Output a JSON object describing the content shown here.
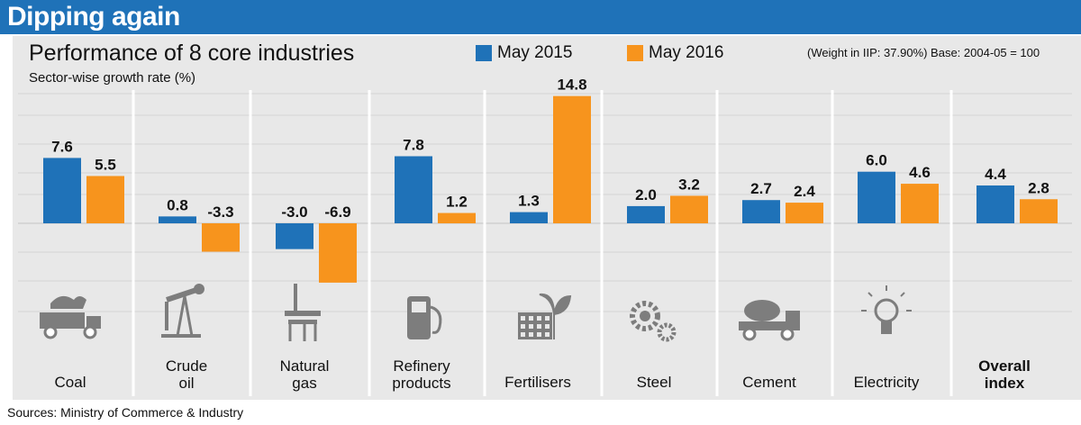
{
  "headline": "Dipping again",
  "source": "Sources: Ministry of Commerce & Industry",
  "chart_data": {
    "type": "bar",
    "title": "Performance of 8 core industries",
    "ylabel": "Sector-wise growth rate (%)",
    "note": "(Weight in IIP: 37.90%) Base: 2004-05 = 100",
    "categories": [
      "Coal",
      "Crude oil",
      "Natural gas",
      "Refinery products",
      "Fertilisers",
      "Steel",
      "Cement",
      "Electricity",
      "Overall index"
    ],
    "category_lines": [
      [
        "Coal"
      ],
      [
        "Crude",
        "oil"
      ],
      [
        "Natural",
        "gas"
      ],
      [
        "Refinery",
        "products"
      ],
      [
        "Fertilisers"
      ],
      [
        "Steel"
      ],
      [
        "Cement"
      ],
      [
        "Electricity"
      ],
      [
        "Overall",
        "index"
      ]
    ],
    "category_bold": [
      false,
      false,
      false,
      false,
      false,
      false,
      false,
      false,
      true
    ],
    "icons": [
      "coal-truck-icon",
      "oil-pump-icon",
      "gas-rig-icon",
      "fuel-pump-icon",
      "factory-plant-icon",
      "gears-icon",
      "cement-mixer-icon",
      "light-bulb-icon",
      ""
    ],
    "series": [
      {
        "name": "May 2015",
        "color": "#1f72b8",
        "values": [
          7.6,
          0.8,
          -3.0,
          7.8,
          1.3,
          2.0,
          2.7,
          6.0,
          4.4
        ]
      },
      {
        "name": "May 2016",
        "color": "#f7941d",
        "values": [
          5.5,
          -3.3,
          -6.9,
          1.2,
          14.8,
          3.2,
          2.4,
          4.6,
          2.8
        ]
      }
    ],
    "grid": true,
    "legend_position": "top-center"
  }
}
